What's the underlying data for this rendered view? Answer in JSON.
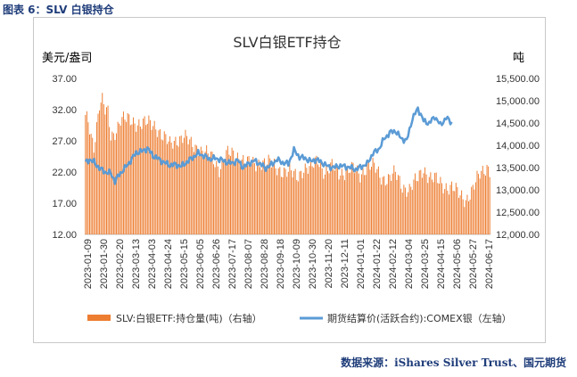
{
  "caption": "图表 6：SLV 白银持仓",
  "source": "数据来源：iShares Silver Trust、国元期货",
  "chart_data": {
    "type": "bar+line",
    "title": "SLV白银ETF持仓",
    "left_unit": "美元/盎司",
    "right_unit": "吨",
    "left_axis": {
      "min": 12,
      "max": 37,
      "ticks": [
        "12.00",
        "17.00",
        "22.00",
        "27.00",
        "32.00",
        "37.00"
      ]
    },
    "right_axis": {
      "min": 12000,
      "max": 15500,
      "ticks": [
        "12,000.00",
        "12,500.00",
        "13,000.00",
        "13,500.00",
        "14,000.00",
        "14,500.00",
        "15,000.00",
        "15,500.00"
      ]
    },
    "x_labels": [
      "2023-01-09",
      "2023-01-30",
      "2023-02-20",
      "2023-03-13",
      "2023-04-03",
      "2023-04-24",
      "2023-05-15",
      "2023-06-05",
      "2023-06-26",
      "2023-07-17",
      "2023-08-07",
      "2023-08-28",
      "2023-09-18",
      "2023-10-09",
      "2023-10-30",
      "2023-11-20",
      "2023-12-11",
      "2024-01-01",
      "2024-01-22",
      "2024-02-12",
      "2024-03-04",
      "2024-03-25",
      "2024-04-15",
      "2024-05-06",
      "2024-05-27",
      "2024-06-17"
    ],
    "series": [
      {
        "name": "SLV:白银ETF:持仓量(吨) (右轴)",
        "kind": "bar",
        "axis": "right",
        "color": "#ed7d31",
        "keypoints": [
          [
            0,
            14600
          ],
          [
            2,
            14500
          ],
          [
            4,
            14200
          ],
          [
            6,
            14000
          ],
          [
            10,
            14950
          ],
          [
            12,
            15000
          ],
          [
            14,
            14750
          ],
          [
            16,
            14700
          ],
          [
            18,
            14200
          ],
          [
            20,
            14250
          ],
          [
            25,
            14600
          ],
          [
            30,
            14550
          ],
          [
            40,
            14500
          ],
          [
            50,
            14450
          ],
          [
            55,
            14200
          ],
          [
            60,
            14000
          ],
          [
            65,
            14150
          ],
          [
            70,
            14200
          ],
          [
            75,
            14000
          ],
          [
            80,
            13950
          ],
          [
            90,
            13700
          ],
          [
            95,
            13500
          ],
          [
            100,
            13800
          ],
          [
            110,
            13750
          ],
          [
            115,
            13600
          ],
          [
            120,
            13550
          ],
          [
            125,
            13650
          ],
          [
            130,
            13600
          ],
          [
            135,
            13500
          ],
          [
            140,
            13450
          ],
          [
            150,
            13300
          ],
          [
            155,
            13500
          ],
          [
            160,
            13450
          ],
          [
            165,
            13700
          ],
          [
            170,
            13400
          ],
          [
            175,
            13500
          ],
          [
            180,
            13400
          ],
          [
            190,
            13450
          ],
          [
            195,
            13350
          ],
          [
            200,
            13550
          ],
          [
            205,
            13500
          ],
          [
            210,
            13300
          ],
          [
            215,
            13250
          ],
          [
            220,
            13350
          ],
          [
            225,
            13100
          ],
          [
            230,
            13000
          ],
          [
            235,
            13200
          ],
          [
            240,
            13500
          ],
          [
            245,
            13250
          ],
          [
            250,
            13200
          ],
          [
            255,
            13100
          ],
          [
            260,
            13050
          ],
          [
            265,
            12900
          ],
          [
            270,
            12800
          ],
          [
            275,
            13000
          ],
          [
            280,
            13350
          ],
          [
            285,
            13550
          ],
          [
            287,
            13450
          ]
        ]
      },
      {
        "name": "期货结算价(活跃合约):COMEX银 (左轴)",
        "kind": "line",
        "axis": "left",
        "color": "#5b9bd5",
        "keypoints": [
          [
            0,
            23.5
          ],
          [
            3,
            24.0
          ],
          [
            6,
            23.6
          ],
          [
            10,
            22.6
          ],
          [
            14,
            22.0
          ],
          [
            18,
            21.8
          ],
          [
            21,
            20.5
          ],
          [
            24,
            21.6
          ],
          [
            28,
            22.6
          ],
          [
            32,
            23.8
          ],
          [
            36,
            25.1
          ],
          [
            40,
            25.3
          ],
          [
            44,
            25.8
          ],
          [
            48,
            24.6
          ],
          [
            52,
            24.1
          ],
          [
            56,
            23.5
          ],
          [
            60,
            23.1
          ],
          [
            64,
            23.2
          ],
          [
            68,
            22.9
          ],
          [
            72,
            23.6
          ],
          [
            76,
            24.3
          ],
          [
            80,
            25.0
          ],
          [
            84,
            24.6
          ],
          [
            88,
            24.1
          ],
          [
            92,
            24.2
          ],
          [
            96,
            24.0
          ],
          [
            100,
            23.6
          ],
          [
            104,
            23.4
          ],
          [
            108,
            23.9
          ],
          [
            112,
            22.7
          ],
          [
            116,
            23.4
          ],
          [
            120,
            23.8
          ],
          [
            124,
            23.3
          ],
          [
            128,
            22.6
          ],
          [
            132,
            23.2
          ],
          [
            136,
            24.0
          ],
          [
            140,
            23.5
          ],
          [
            144,
            23.3
          ],
          [
            148,
            25.5
          ],
          [
            152,
            24.4
          ],
          [
            156,
            24.2
          ],
          [
            160,
            23.7
          ],
          [
            164,
            24.0
          ],
          [
            168,
            23.5
          ],
          [
            172,
            22.9
          ],
          [
            176,
            22.7
          ],
          [
            180,
            23.0
          ],
          [
            184,
            22.9
          ],
          [
            188,
            22.7
          ],
          [
            192,
            22.4
          ],
          [
            196,
            22.9
          ],
          [
            200,
            23.3
          ],
          [
            204,
            25.0
          ],
          [
            208,
            25.6
          ],
          [
            212,
            27.3
          ],
          [
            216,
            28.3
          ],
          [
            220,
            28.6
          ],
          [
            224,
            27.4
          ],
          [
            228,
            27.0
          ],
          [
            232,
            30.5
          ],
          [
            236,
            32.2
          ],
          [
            240,
            30.2
          ],
          [
            244,
            29.8
          ],
          [
            248,
            30.9
          ],
          [
            252,
            29.5
          ],
          [
            256,
            30.7
          ],
          [
            260,
            29.9
          ]
        ]
      }
    ],
    "legend": [
      "SLV:白银ETF:持仓量(吨)（右轴）",
      "期货结算价(活跃合约):COMEX银（左轴）"
    ]
  }
}
